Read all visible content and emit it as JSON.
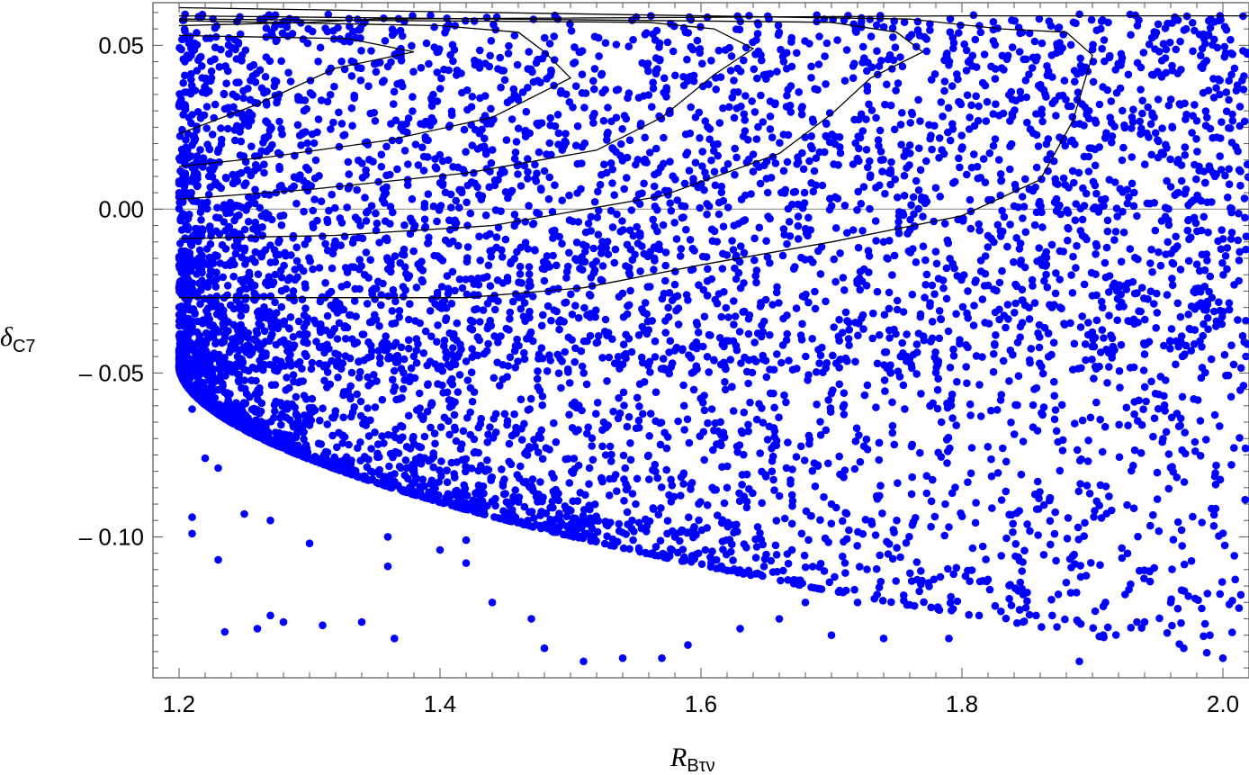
{
  "chart_data": {
    "type": "scatter",
    "title": "",
    "xlabel": {
      "main": "R",
      "sub": "Bτν"
    },
    "ylabel": {
      "main": "δ",
      "sub": "C7"
    },
    "xlim": [
      1.18,
      2.02
    ],
    "ylim": [
      -0.143,
      0.063
    ],
    "x_ticks": [
      {
        "value": 1.2,
        "label": "1.2"
      },
      {
        "value": 1.4,
        "label": "1.4"
      },
      {
        "value": 1.6,
        "label": "1.6"
      },
      {
        "value": 1.8,
        "label": "1.8"
      },
      {
        "value": 2.0,
        "label": "2.0"
      }
    ],
    "y_ticks": [
      {
        "value": 0.05,
        "label": "0.05"
      },
      {
        "value": 0.0,
        "label": "0.00"
      },
      {
        "value": -0.05,
        "label": "– 0.05"
      },
      {
        "value": -0.1,
        "label": "– 0.10"
      }
    ],
    "point_color": "#0000ff",
    "contour_color": "#000000",
    "zero_line_color": "#9a9a9a",
    "grid": false,
    "legend": "none",
    "sample_points": [
      [
        1.21,
        -0.061
      ],
      [
        1.22,
        -0.076
      ],
      [
        1.23,
        -0.079
      ],
      [
        1.21,
        -0.094
      ],
      [
        1.21,
        -0.099
      ],
      [
        1.23,
        -0.107
      ],
      [
        1.235,
        -0.129
      ],
      [
        1.26,
        -0.128
      ],
      [
        1.27,
        -0.124
      ],
      [
        1.28,
        -0.126
      ],
      [
        1.31,
        -0.127
      ],
      [
        1.34,
        -0.126
      ],
      [
        1.365,
        -0.131
      ],
      [
        1.36,
        -0.1
      ],
      [
        1.36,
        -0.109
      ],
      [
        1.4,
        -0.104
      ],
      [
        1.42,
        -0.108
      ],
      [
        1.44,
        -0.12
      ],
      [
        1.47,
        -0.125
      ],
      [
        1.48,
        -0.134
      ],
      [
        1.51,
        -0.138
      ],
      [
        1.54,
        -0.137
      ],
      [
        1.57,
        -0.137
      ],
      [
        1.59,
        -0.133
      ],
      [
        1.63,
        -0.128
      ],
      [
        1.66,
        -0.125
      ],
      [
        1.7,
        -0.13
      ],
      [
        1.74,
        -0.131
      ],
      [
        1.79,
        -0.131
      ],
      [
        1.89,
        -0.138
      ],
      [
        1.94,
        -0.126
      ],
      [
        1.97,
        -0.134
      ],
      [
        2.0,
        -0.137
      ],
      [
        1.99,
        -0.13
      ],
      [
        1.96,
        -0.12
      ],
      [
        1.91,
        -0.12
      ],
      [
        1.85,
        -0.117
      ],
      [
        1.82,
        -0.113
      ],
      [
        1.72,
        -0.12
      ],
      [
        1.68,
        -0.12
      ],
      [
        1.25,
        -0.093
      ],
      [
        1.27,
        -0.095
      ],
      [
        1.3,
        -0.102
      ],
      [
        1.42,
        -0.101
      ],
      [
        1.55,
        -0.09
      ],
      [
        1.58,
        -0.1
      ],
      [
        1.62,
        -0.085
      ],
      [
        1.7,
        -0.09
      ],
      [
        1.75,
        -0.095
      ],
      [
        1.79,
        -0.097
      ]
    ],
    "hdr_contours": [
      [
        [
          1.2,
          0.056
        ],
        [
          1.3,
          0.057
        ],
        [
          1.35,
          0.058
        ],
        [
          1.8,
          0.059
        ],
        [
          2.02,
          0.059
        ]
      ],
      [
        [
          1.2,
          0.053
        ],
        [
          1.33,
          0.052
        ],
        [
          1.38,
          0.048
        ],
        [
          1.32,
          0.043
        ],
        [
          1.26,
          0.032
        ],
        [
          1.2,
          0.023
        ]
      ],
      [
        [
          1.2,
          0.013
        ],
        [
          1.27,
          0.016
        ],
        [
          1.36,
          0.021
        ],
        [
          1.44,
          0.028
        ],
        [
          1.5,
          0.04
        ],
        [
          1.48,
          0.048
        ],
        [
          1.46,
          0.054
        ],
        [
          1.4,
          0.056
        ],
        [
          1.2,
          0.0575
        ]
      ],
      [
        [
          1.2,
          0.003
        ],
        [
          1.3,
          0.006
        ],
        [
          1.42,
          0.011
        ],
        [
          1.52,
          0.018
        ],
        [
          1.57,
          0.028
        ],
        [
          1.61,
          0.041
        ],
        [
          1.64,
          0.049
        ],
        [
          1.61,
          0.055
        ],
        [
          1.56,
          0.057
        ],
        [
          1.2,
          0.058
        ]
      ],
      [
        [
          1.2,
          -0.009
        ],
        [
          1.32,
          -0.008
        ],
        [
          1.44,
          -0.005
        ],
        [
          1.57,
          0.004
        ],
        [
          1.66,
          0.017
        ],
        [
          1.7,
          0.029
        ],
        [
          1.73,
          0.04
        ],
        [
          1.77,
          0.048
        ],
        [
          1.75,
          0.054
        ],
        [
          1.7,
          0.057
        ],
        [
          1.2,
          0.059
        ]
      ],
      [
        [
          1.2,
          -0.027
        ],
        [
          1.3,
          -0.027
        ],
        [
          1.42,
          -0.027
        ],
        [
          1.51,
          -0.024
        ],
        [
          1.6,
          -0.017
        ],
        [
          1.7,
          -0.01
        ],
        [
          1.8,
          -0.002
        ],
        [
          1.86,
          0.009
        ],
        [
          1.885,
          0.027
        ],
        [
          1.9,
          0.047
        ],
        [
          1.88,
          0.054
        ],
        [
          1.83,
          0.055
        ],
        [
          1.76,
          0.058
        ],
        [
          1.2,
          0.0615
        ]
      ]
    ]
  }
}
